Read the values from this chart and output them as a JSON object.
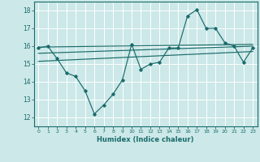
{
  "xlabel": "Humidex (Indice chaleur)",
  "bg_color": "#cce8e8",
  "grid_color": "#ffffff",
  "line_color": "#1a6b6b",
  "xlim": [
    -0.5,
    23.5
  ],
  "ylim": [
    11.5,
    18.5
  ],
  "yticks": [
    12,
    13,
    14,
    15,
    16,
    17,
    18
  ],
  "xticks": [
    0,
    1,
    2,
    3,
    4,
    5,
    6,
    7,
    8,
    9,
    10,
    11,
    12,
    13,
    14,
    15,
    16,
    17,
    18,
    19,
    20,
    21,
    22,
    23
  ],
  "main_x": [
    0,
    1,
    2,
    3,
    4,
    5,
    6,
    7,
    8,
    9,
    10,
    11,
    12,
    13,
    14,
    15,
    16,
    17,
    18,
    19,
    20,
    21,
    22,
    23
  ],
  "main_y": [
    15.9,
    16.0,
    15.3,
    14.5,
    14.3,
    13.5,
    12.2,
    12.7,
    13.3,
    14.1,
    16.1,
    14.7,
    15.0,
    15.1,
    15.9,
    15.9,
    17.7,
    18.05,
    17.0,
    17.0,
    16.2,
    16.0,
    15.1,
    15.9
  ],
  "trend1_x": [
    0,
    23
  ],
  "trend1_y": [
    15.95,
    16.1
  ],
  "trend2_x": [
    0,
    23
  ],
  "trend2_y": [
    15.6,
    16.0
  ],
  "trend3_x": [
    0,
    23
  ],
  "trend3_y": [
    15.15,
    15.7
  ]
}
